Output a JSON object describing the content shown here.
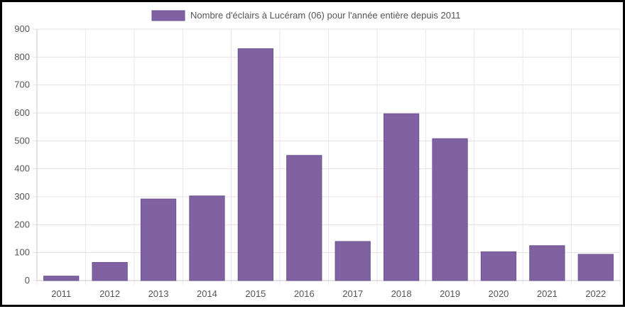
{
  "chart_data": {
    "type": "bar",
    "legend": {
      "label": "Nombre d'éclairs à Lucéram (06) pour l'année entière depuis 2011",
      "position": "top-center"
    },
    "categories": [
      "2011",
      "2012",
      "2013",
      "2014",
      "2015",
      "2016",
      "2017",
      "2018",
      "2019",
      "2020",
      "2021",
      "2022"
    ],
    "series": [
      {
        "name": "Nombre d'éclairs à Lucéram (06) pour l'année entière depuis 2011",
        "values": [
          16,
          65,
          292,
          303,
          830,
          448,
          140,
          597,
          508,
          103,
          125,
          94
        ],
        "color": "#8062a3"
      }
    ],
    "ylim": [
      0,
      900
    ],
    "yticks": [
      "0",
      "100",
      "200",
      "300",
      "400",
      "500",
      "600",
      "700",
      "800",
      "900"
    ],
    "grid": true,
    "xlabel": "",
    "ylabel": ""
  }
}
